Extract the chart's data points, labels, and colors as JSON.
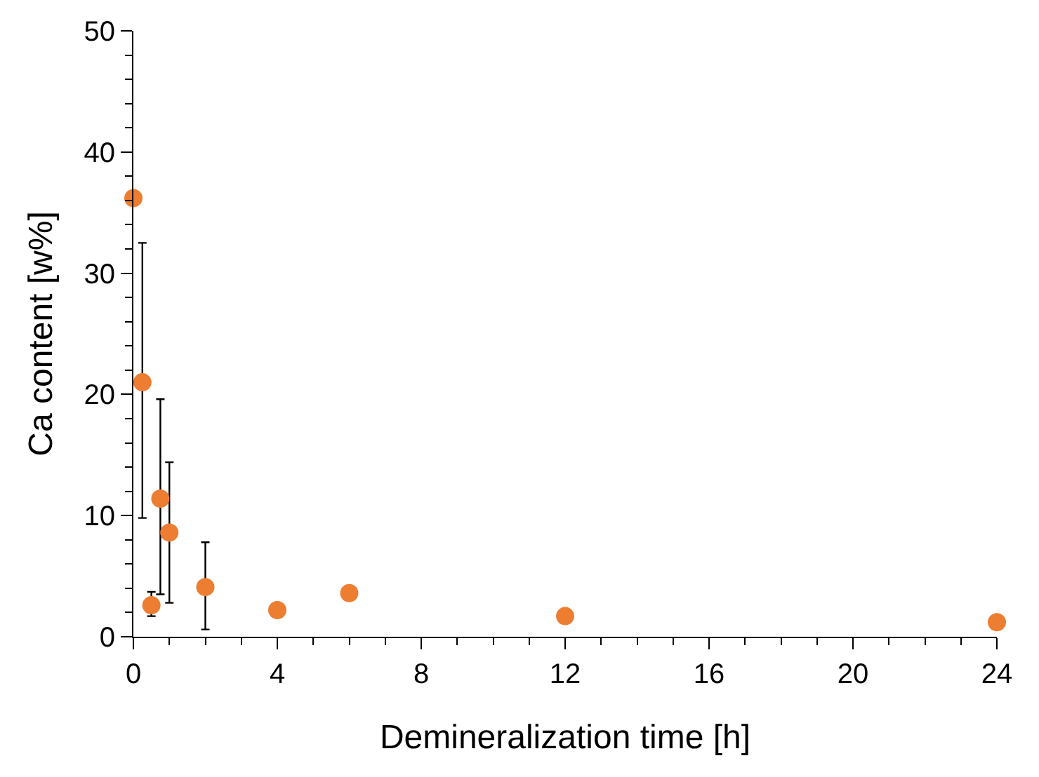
{
  "chart_data": {
    "type": "scatter",
    "xlabel": "Demineralization time [h]",
    "ylabel": "Ca content [w%]",
    "x": [
      0,
      0.25,
      0.5,
      0.75,
      1,
      2,
      4,
      6,
      12,
      24
    ],
    "series": [
      {
        "color": "#ed7d31",
        "values": [
          36.2,
          21.0,
          2.6,
          11.4,
          8.6,
          4.1,
          2.2,
          3.6,
          1.7,
          1.2
        ],
        "errors": [
          null,
          [
            9.8,
            32.5
          ],
          [
            1.7,
            3.7
          ],
          [
            3.5,
            19.6
          ],
          [
            2.8,
            14.4
          ],
          [
            0.6,
            7.8
          ],
          null,
          null,
          null,
          null
        ]
      }
    ],
    "xlim": [
      0,
      24
    ],
    "xticks": [
      0,
      4,
      8,
      12,
      16,
      20,
      24
    ],
    "ylim": [
      0,
      50
    ],
    "yticks": [
      0,
      10,
      20,
      30,
      40,
      50
    ],
    "marker": "circle"
  }
}
